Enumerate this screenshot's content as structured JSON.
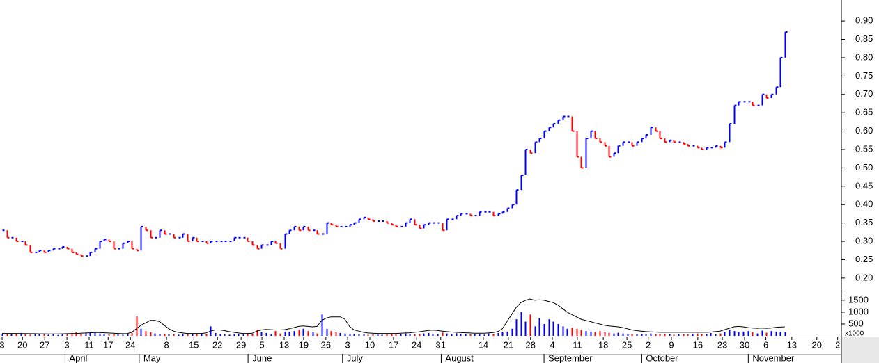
{
  "chart_data": [
    {
      "type": "price-bar",
      "up_color": "#0000ff",
      "down_color": "#ff0000",
      "xlim": [
        -0.45,
        181.2
      ],
      "ylim": [
        0.16,
        0.957
      ],
      "yticks": [
        {
          "value": 0.2,
          "label": "0.20"
        },
        {
          "value": 0.25,
          "label": "0.25"
        },
        {
          "value": 0.3,
          "label": "0.30"
        },
        {
          "value": 0.35,
          "label": "0.35"
        },
        {
          "value": 0.4,
          "label": "0.40"
        },
        {
          "value": 0.45,
          "label": "0.45"
        },
        {
          "value": 0.5,
          "label": "0.50"
        },
        {
          "value": 0.55,
          "label": "0.55"
        },
        {
          "value": 0.6,
          "label": "0.60"
        },
        {
          "value": 0.65,
          "label": "0.65"
        },
        {
          "value": 0.7,
          "label": "0.70"
        },
        {
          "value": 0.75,
          "label": "0.75"
        },
        {
          "value": 0.8,
          "label": "0.80"
        },
        {
          "value": 0.85,
          "label": "0.85"
        },
        {
          "value": 0.9,
          "label": "0.90"
        }
      ],
      "close": [
        0.33,
        0.31,
        0.31,
        0.3,
        0.3,
        0.29,
        0.27,
        0.27,
        0.275,
        0.27,
        0.275,
        0.28,
        0.28,
        0.285,
        0.28,
        0.27,
        0.265,
        0.26,
        0.26,
        0.27,
        0.28,
        0.3,
        0.305,
        0.3,
        0.28,
        0.28,
        0.295,
        0.3,
        0.28,
        0.275,
        0.34,
        0.33,
        0.31,
        0.31,
        0.33,
        0.32,
        0.32,
        0.31,
        0.31,
        0.32,
        0.3,
        0.31,
        0.3,
        0.3,
        0.295,
        0.3,
        0.3,
        0.3,
        0.3,
        0.3,
        0.31,
        0.31,
        0.31,
        0.3,
        0.29,
        0.28,
        0.29,
        0.29,
        0.3,
        0.295,
        0.28,
        0.32,
        0.33,
        0.34,
        0.33,
        0.34,
        0.33,
        0.33,
        0.32,
        0.32,
        0.35,
        0.345,
        0.34,
        0.34,
        0.34,
        0.345,
        0.35,
        0.36,
        0.365,
        0.36,
        0.355,
        0.355,
        0.355,
        0.35,
        0.345,
        0.34,
        0.34,
        0.35,
        0.36,
        0.345,
        0.335,
        0.345,
        0.35,
        0.35,
        0.35,
        0.33,
        0.36,
        0.36,
        0.37,
        0.375,
        0.375,
        0.37,
        0.37,
        0.38,
        0.38,
        0.38,
        0.37,
        0.375,
        0.38,
        0.39,
        0.4,
        0.44,
        0.48,
        0.55,
        0.54,
        0.57,
        0.58,
        0.6,
        0.61,
        0.62,
        0.63,
        0.64,
        0.64,
        0.6,
        0.53,
        0.5,
        0.58,
        0.6,
        0.58,
        0.57,
        0.56,
        0.53,
        0.54,
        0.56,
        0.57,
        0.57,
        0.56,
        0.57,
        0.58,
        0.59,
        0.61,
        0.6,
        0.58,
        0.57,
        0.575,
        0.57,
        0.57,
        0.565,
        0.56,
        0.56,
        0.555,
        0.55,
        0.555,
        0.555,
        0.56,
        0.555,
        0.57,
        0.62,
        0.67,
        0.68,
        0.68,
        0.68,
        0.67,
        0.67,
        0.7,
        0.69,
        0.7,
        0.72,
        0.8,
        0.87
      ]
    },
    {
      "type": "volume",
      "up_color": "#0000ff",
      "down_color": "#ff0000",
      "ma_color": "#000000",
      "xlim": [
        -0.45,
        181.2
      ],
      "ylim": [
        0,
        1760
      ],
      "yticks": [
        500,
        1000,
        1500
      ],
      "unit": "x1000",
      "values": [
        80,
        100,
        60,
        90,
        120,
        70,
        50,
        60,
        80,
        60,
        50,
        70,
        40,
        90,
        100,
        120,
        150,
        90,
        110,
        140,
        130,
        100,
        80,
        60,
        90,
        70,
        50,
        60,
        120,
        820,
        300,
        200,
        150,
        100,
        80,
        90,
        60,
        70,
        50,
        80,
        70,
        60,
        90,
        100,
        80,
        400,
        120,
        80,
        60,
        50,
        90,
        70,
        60,
        100,
        80,
        250,
        150,
        120,
        90,
        200,
        100,
        180,
        150,
        200,
        250,
        300,
        200,
        150,
        100,
        900,
        300,
        200,
        150,
        120,
        100,
        90,
        80,
        60,
        70,
        50,
        60,
        80,
        50,
        70,
        90,
        60,
        80,
        100,
        70,
        60,
        80,
        100,
        120,
        90,
        60,
        140,
        100,
        80,
        110,
        90,
        70,
        60,
        80,
        90,
        50,
        100,
        90,
        120,
        150,
        180,
        300,
        700,
        1000,
        600,
        900,
        400,
        750,
        500,
        700,
        600,
        500,
        400,
        300,
        350,
        300,
        250,
        200,
        180,
        150,
        200,
        150,
        120,
        100,
        130,
        100,
        90,
        80,
        70,
        90,
        60,
        100,
        70,
        80,
        90,
        60,
        50,
        70,
        80,
        60,
        90,
        100,
        80,
        70,
        120,
        60,
        100,
        150,
        250,
        200,
        150,
        180,
        200,
        150,
        100,
        220,
        130,
        200,
        180,
        170,
        150
      ],
      "ma": [
        100,
        100,
        100,
        100,
        95,
        95,
        90,
        90,
        85,
        85,
        80,
        80,
        80,
        85,
        90,
        95,
        100,
        110,
        120,
        130,
        140,
        140,
        130,
        120,
        110,
        100,
        90,
        90,
        150,
        300,
        450,
        550,
        650,
        650,
        600,
        450,
        300,
        200,
        150,
        120,
        100,
        100,
        100,
        100,
        120,
        200,
        250,
        250,
        220,
        180,
        150,
        120,
        100,
        100,
        110,
        200,
        250,
        270,
        260,
        250,
        250,
        260,
        300,
        350,
        400,
        420,
        400,
        380,
        400,
        650,
        750,
        800,
        800,
        800,
        700,
        400,
        250,
        200,
        150,
        120,
        110,
        100,
        100,
        100,
        100,
        100,
        110,
        120,
        130,
        150,
        170,
        200,
        230,
        240,
        230,
        200,
        180,
        160,
        150,
        140,
        130,
        120,
        110,
        110,
        110,
        120,
        140,
        180,
        300,
        600,
        900,
        1200,
        1400,
        1500,
        1550,
        1500,
        1520,
        1500,
        1450,
        1400,
        1300,
        1150,
        1000,
        900,
        800,
        700,
        650,
        600,
        550,
        500,
        450,
        420,
        400,
        380,
        350,
        300,
        250,
        220,
        200,
        180,
        170,
        160,
        150,
        150,
        150,
        150,
        150,
        150,
        150,
        150,
        150,
        150,
        150,
        160,
        180,
        200,
        260,
        320,
        380,
        400,
        380,
        350,
        330,
        320,
        330,
        320,
        330,
        360,
        370,
        380
      ]
    },
    {
      "type": "date-axis",
      "xlim": [
        -0.45,
        181.2
      ],
      "xticks": [
        {
          "value": 0,
          "label": "3"
        },
        {
          "value": 4.4,
          "label": "20"
        },
        {
          "value": 9.2,
          "label": "27"
        },
        {
          "value": 14,
          "label": "3"
        },
        {
          "value": 18.8,
          "label": "11"
        },
        {
          "value": 22.9,
          "label": "17"
        },
        {
          "value": 27.7,
          "label": "24"
        },
        {
          "value": 35.5,
          "label": "8"
        },
        {
          "value": 41.4,
          "label": "15"
        },
        {
          "value": 46.5,
          "label": "22"
        },
        {
          "value": 51.6,
          "label": "29"
        },
        {
          "value": 56.1,
          "label": "5"
        },
        {
          "value": 60.9,
          "label": "13"
        },
        {
          "value": 65.1,
          "label": "19"
        },
        {
          "value": 69.9,
          "label": "26"
        },
        {
          "value": 74.6,
          "label": "3"
        },
        {
          "value": 79.4,
          "label": "10"
        },
        {
          "value": 84.5,
          "label": "17"
        },
        {
          "value": 89.5,
          "label": "24"
        },
        {
          "value": 94.7,
          "label": "31"
        },
        {
          "value": 103.9,
          "label": "14"
        },
        {
          "value": 109.3,
          "label": "21"
        },
        {
          "value": 114.1,
          "label": "28"
        },
        {
          "value": 118.8,
          "label": "4"
        },
        {
          "value": 124.2,
          "label": "11"
        },
        {
          "value": 129.8,
          "label": "18"
        },
        {
          "value": 134.9,
          "label": "25"
        },
        {
          "value": 139.5,
          "label": "2"
        },
        {
          "value": 144.5,
          "label": "9"
        },
        {
          "value": 150.2,
          "label": "16"
        },
        {
          "value": 155.5,
          "label": "23"
        },
        {
          "value": 160.3,
          "label": "30"
        },
        {
          "value": 164.9,
          "label": "6"
        },
        {
          "value": 170.5,
          "label": "13"
        },
        {
          "value": 175.9,
          "label": "20"
        },
        {
          "value": 180.4,
          "label": "2"
        }
      ],
      "months": [
        {
          "value": 13.6,
          "label": "April"
        },
        {
          "value": 29.6,
          "label": "May"
        },
        {
          "value": 53.1,
          "label": "June"
        },
        {
          "value": 73.5,
          "label": "July"
        },
        {
          "value": 94.8,
          "label": "August"
        },
        {
          "value": 117,
          "label": "September"
        },
        {
          "value": 138.1,
          "label": "October"
        },
        {
          "value": 161.1,
          "label": "November"
        }
      ]
    }
  ]
}
